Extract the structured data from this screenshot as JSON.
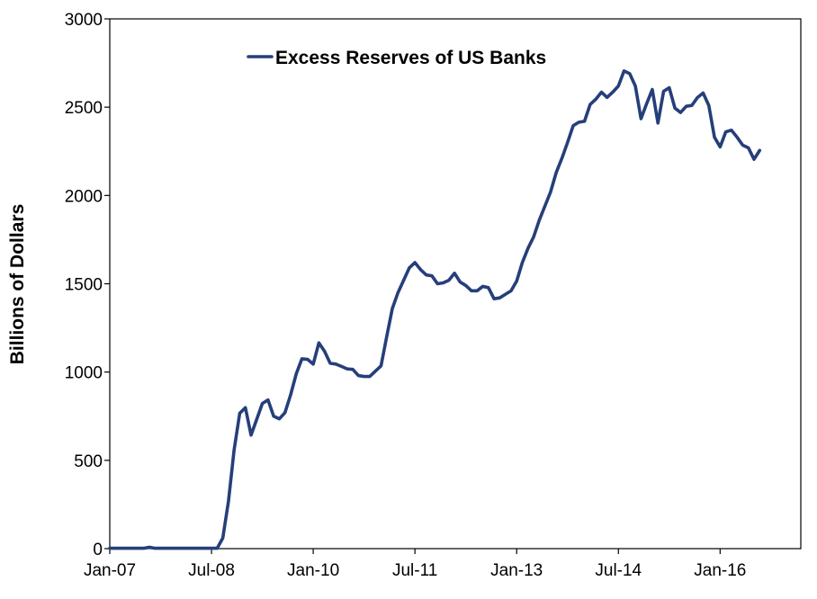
{
  "chart_data": {
    "type": "line",
    "title": "",
    "xlabel": "",
    "ylabel": "Billions of Dollars",
    "ylim": [
      0,
      3000
    ],
    "xlim": [
      "2007-01",
      "2016-07"
    ],
    "grid": false,
    "legend_position": "top-center",
    "y_ticks": [
      {
        "value": 0,
        "label": "0"
      },
      {
        "value": 500,
        "label": "500"
      },
      {
        "value": 1000,
        "label": "1000"
      },
      {
        "value": 1500,
        "label": "1500"
      },
      {
        "value": 2000,
        "label": "2000"
      },
      {
        "value": 2500,
        "label": "2500"
      },
      {
        "value": 3000,
        "label": "3000"
      }
    ],
    "x_ticks": [
      {
        "date": "2007-01",
        "label": "Jan-07"
      },
      {
        "date": "2008-07",
        "label": "Jul-08"
      },
      {
        "date": "2010-01",
        "label": "Jan-10"
      },
      {
        "date": "2011-07",
        "label": "Jul-11"
      },
      {
        "date": "2013-01",
        "label": "Jan-13"
      },
      {
        "date": "2014-07",
        "label": "Jul-14"
      },
      {
        "date": "2016-01",
        "label": "Jan-16"
      }
    ],
    "series": [
      {
        "name": "Excess Reserves of US Banks",
        "color": "#263f7a",
        "points": [
          [
            "2007-01",
            2
          ],
          [
            "2007-02",
            2
          ],
          [
            "2007-03",
            2
          ],
          [
            "2007-04",
            2
          ],
          [
            "2007-05",
            2
          ],
          [
            "2007-06",
            2
          ],
          [
            "2007-07",
            2
          ],
          [
            "2007-08",
            8
          ],
          [
            "2007-09",
            2
          ],
          [
            "2007-10",
            2
          ],
          [
            "2007-11",
            2
          ],
          [
            "2007-12",
            2
          ],
          [
            "2008-01",
            2
          ],
          [
            "2008-02",
            2
          ],
          [
            "2008-03",
            2
          ],
          [
            "2008-04",
            2
          ],
          [
            "2008-05",
            2
          ],
          [
            "2008-06",
            2
          ],
          [
            "2008-07",
            2
          ],
          [
            "2008-08",
            2
          ],
          [
            "2008-09",
            60
          ],
          [
            "2008-10",
            267
          ],
          [
            "2008-11",
            559
          ],
          [
            "2008-12",
            767
          ],
          [
            "2009-01",
            798
          ],
          [
            "2009-02",
            643
          ],
          [
            "2009-03",
            732
          ],
          [
            "2009-04",
            822
          ],
          [
            "2009-05",
            842
          ],
          [
            "2009-06",
            750
          ],
          [
            "2009-07",
            735
          ],
          [
            "2009-08",
            770
          ],
          [
            "2009-09",
            871
          ],
          [
            "2009-10",
            990
          ],
          [
            "2009-11",
            1075
          ],
          [
            "2009-12",
            1072
          ],
          [
            "2010-01",
            1045
          ],
          [
            "2010-02",
            1165
          ],
          [
            "2010-03",
            1118
          ],
          [
            "2010-04",
            1050
          ],
          [
            "2010-05",
            1045
          ],
          [
            "2010-06",
            1032
          ],
          [
            "2010-07",
            1018
          ],
          [
            "2010-08",
            1015
          ],
          [
            "2010-09",
            980
          ],
          [
            "2010-10",
            975
          ],
          [
            "2010-11",
            975
          ],
          [
            "2010-12",
            1005
          ],
          [
            "2011-01",
            1035
          ],
          [
            "2011-02",
            1200
          ],
          [
            "2011-03",
            1360
          ],
          [
            "2011-04",
            1450
          ],
          [
            "2011-05",
            1520
          ],
          [
            "2011-06",
            1590
          ],
          [
            "2011-07",
            1620
          ],
          [
            "2011-08",
            1580
          ],
          [
            "2011-09",
            1550
          ],
          [
            "2011-10",
            1545
          ],
          [
            "2011-11",
            1500
          ],
          [
            "2011-12",
            1505
          ],
          [
            "2012-01",
            1520
          ],
          [
            "2012-02",
            1560
          ],
          [
            "2012-03",
            1510
          ],
          [
            "2012-04",
            1490
          ],
          [
            "2012-05",
            1460
          ],
          [
            "2012-06",
            1460
          ],
          [
            "2012-07",
            1485
          ],
          [
            "2012-08",
            1478
          ],
          [
            "2012-09",
            1415
          ],
          [
            "2012-10",
            1420
          ],
          [
            "2012-11",
            1440
          ],
          [
            "2012-12",
            1460
          ],
          [
            "2013-01",
            1515
          ],
          [
            "2013-02",
            1620
          ],
          [
            "2013-03",
            1700
          ],
          [
            "2013-04",
            1765
          ],
          [
            "2013-05",
            1860
          ],
          [
            "2013-06",
            1940
          ],
          [
            "2013-07",
            2020
          ],
          [
            "2013-08",
            2130
          ],
          [
            "2013-09",
            2210
          ],
          [
            "2013-10",
            2300
          ],
          [
            "2013-11",
            2395
          ],
          [
            "2013-12",
            2415
          ],
          [
            "2014-01",
            2420
          ],
          [
            "2014-02",
            2515
          ],
          [
            "2014-03",
            2545
          ],
          [
            "2014-04",
            2585
          ],
          [
            "2014-05",
            2555
          ],
          [
            "2014-06",
            2585
          ],
          [
            "2014-07",
            2620
          ],
          [
            "2014-08",
            2705
          ],
          [
            "2014-09",
            2690
          ],
          [
            "2014-10",
            2620
          ],
          [
            "2014-11",
            2435
          ],
          [
            "2014-12",
            2520
          ],
          [
            "2015-01",
            2600
          ],
          [
            "2015-02",
            2410
          ],
          [
            "2015-03",
            2590
          ],
          [
            "2015-04",
            2610
          ],
          [
            "2015-05",
            2495
          ],
          [
            "2015-06",
            2470
          ],
          [
            "2015-07",
            2505
          ],
          [
            "2015-08",
            2510
          ],
          [
            "2015-09",
            2555
          ],
          [
            "2015-10",
            2580
          ],
          [
            "2015-11",
            2510
          ],
          [
            "2015-12",
            2330
          ],
          [
            "2016-01",
            2275
          ],
          [
            "2016-02",
            2360
          ],
          [
            "2016-03",
            2370
          ],
          [
            "2016-04",
            2330
          ],
          [
            "2016-05",
            2285
          ],
          [
            "2016-06",
            2270
          ],
          [
            "2016-07",
            2205
          ],
          [
            "2016-08",
            2255
          ]
        ]
      }
    ]
  }
}
